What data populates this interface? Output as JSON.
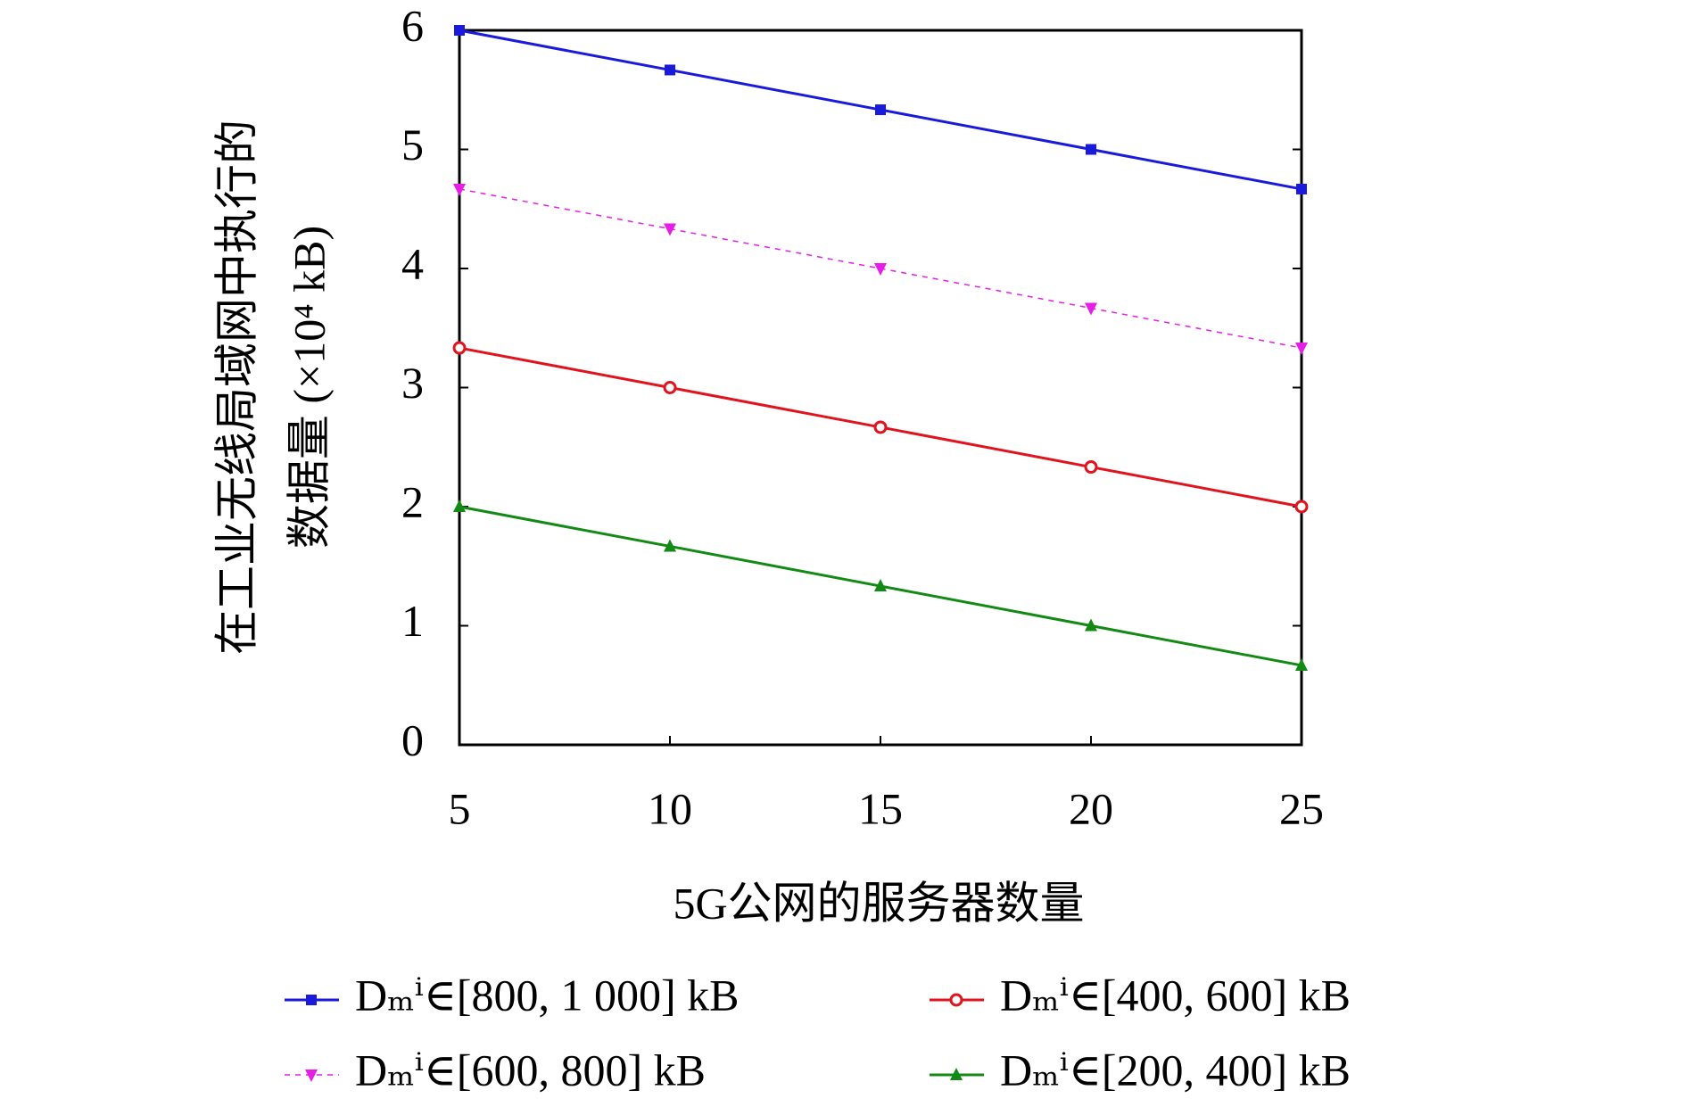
{
  "chart_data": {
    "type": "line",
    "x_label": "5G公网的服务器数量",
    "y_label": [
      "在工业无线局域网中执行的",
      "数据量 (×10⁴ kB)"
    ],
    "x": [
      5,
      10,
      15,
      20,
      25
    ],
    "xlim": [
      5,
      25
    ],
    "xticks": [
      5,
      10,
      15,
      20,
      25
    ],
    "ylim": [
      0,
      6
    ],
    "yticks": [
      0,
      1,
      2,
      3,
      4,
      5,
      6
    ],
    "series": [
      {
        "name": "Dₘⁱ∈[800, 1 000] kB",
        "color": "#1a1adb",
        "marker": "square",
        "dashed": false,
        "values": [
          6,
          5.667,
          5.333,
          5,
          4.667
        ]
      },
      {
        "name": "Dₘⁱ∈[600, 800] kB",
        "color": "#e61ee6",
        "marker": "triangle-down",
        "dashed": true,
        "values": [
          4.667,
          4.333,
          4,
          3.667,
          3.333
        ]
      },
      {
        "name": "Dₘⁱ∈[400, 600] kB",
        "color": "#e0141e",
        "marker": "circle",
        "dashed": false,
        "values": [
          3.333,
          3,
          2.667,
          2.333,
          2
        ]
      },
      {
        "name": "Dₘⁱ∈[200, 400] kB",
        "color": "#138a13",
        "marker": "triangle-up",
        "dashed": false,
        "values": [
          2,
          1.667,
          1.333,
          1,
          0.667
        ]
      }
    ]
  }
}
